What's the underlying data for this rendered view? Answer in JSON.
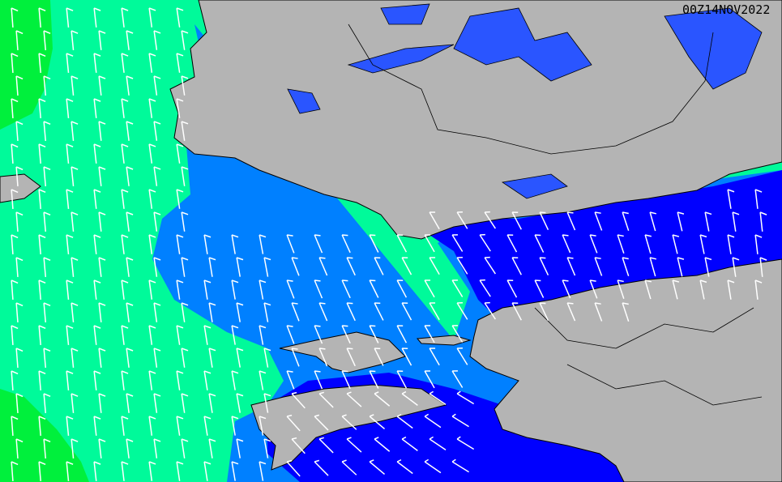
{
  "map": {
    "timestamp": "00Z14NOV2022",
    "colors": {
      "land": "#b4b4b4",
      "lakes": "#2a55ff",
      "band_green": "#00f03c",
      "band_teal": "#00fa9a",
      "band_mid_blue": "#0080ff",
      "band_dark_blue": "#0000ff",
      "barbs": "#ffffff",
      "borders": "#000000"
    }
  }
}
